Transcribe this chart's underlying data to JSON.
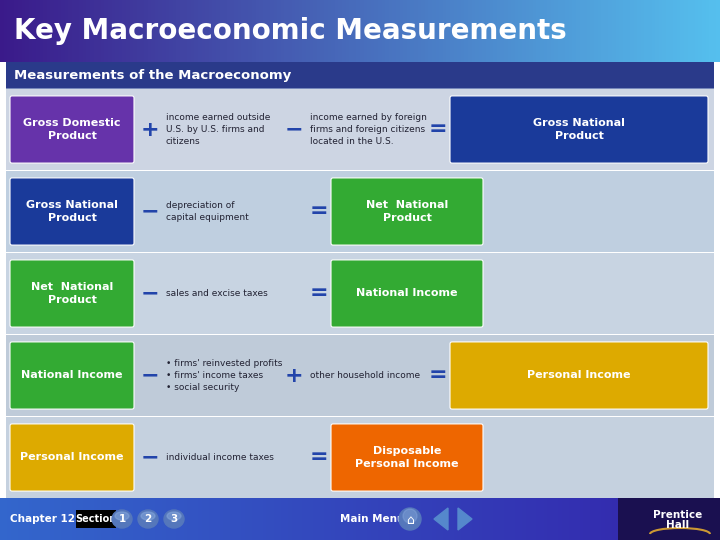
{
  "title": "Key Macroeconomic Measurements",
  "subtitle": "Measurements of the Macroeconomy",
  "rows": [
    {
      "left_box": {
        "text": "Gross Domestic\nProduct",
        "color": "#6633aa"
      },
      "op1": "+",
      "mid_text1": "income earned outside\nU.S. by U.S. firms and\ncitizens",
      "op2": "−",
      "mid_text2": "income earned by foreign\nfirms and foreign citizens\nlocated in the U.S.",
      "op3": "=",
      "right_box": {
        "text": "Gross National\nProduct",
        "color": "#1a3a9a"
      },
      "bg": "#cdd5e3"
    },
    {
      "left_box": {
        "text": "Gross National\nProduct",
        "color": "#1a3a9a"
      },
      "op1": "−",
      "mid_text1": "depreciation of\ncapital equipment",
      "op2": "=",
      "mid_text2": null,
      "op3": null,
      "right_box": {
        "text": "Net  National\nProduct",
        "color": "#33aa33"
      },
      "bg": "#c2cede"
    },
    {
      "left_box": {
        "text": "Net  National\nProduct",
        "color": "#33aa33"
      },
      "op1": "−",
      "mid_text1": "sales and excise taxes",
      "op2": "=",
      "mid_text2": null,
      "op3": null,
      "right_box": {
        "text": "National Income",
        "color": "#33aa33"
      },
      "bg": "#c8d4e2"
    },
    {
      "left_box": {
        "text": "National Income",
        "color": "#33aa33"
      },
      "op1": "−",
      "mid_text1": "• firms' reinvested profits\n• firms' income taxes\n• social security",
      "op2": "+",
      "mid_text2": "other household income",
      "op3": "=",
      "right_box": {
        "text": "Personal Income",
        "color": "#ddaa00"
      },
      "bg": "#bfcbd9"
    },
    {
      "left_box": {
        "text": "Personal Income",
        "color": "#ddaa00"
      },
      "op1": "−",
      "mid_text1": "individual income taxes",
      "op2": "=",
      "mid_text2": null,
      "op3": null,
      "right_box": {
        "text": "Disposable\nPersonal Income",
        "color": "#ee6600"
      },
      "bg": "#c5d1df"
    }
  ]
}
